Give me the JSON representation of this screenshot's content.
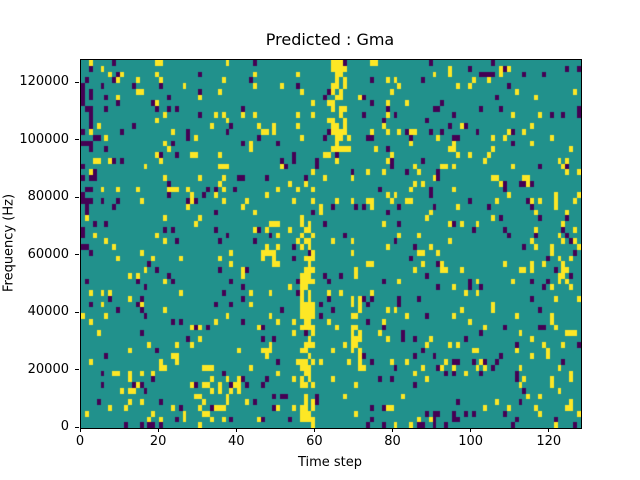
{
  "figure": {
    "background": "#ffffff",
    "axes_edge_color": "#000000",
    "text_color": "#000000"
  },
  "chart_data": {
    "type": "heatmap",
    "title": "Predicted : Gma",
    "xlabel": "Time step",
    "ylabel": "Frequency (Hz)",
    "xlim": [
      0,
      128
    ],
    "ylim": [
      0,
      128000
    ],
    "x_ticks": [
      0,
      20,
      40,
      60,
      80,
      100,
      120
    ],
    "x_tick_labels": [
      "0",
      "20",
      "40",
      "60",
      "80",
      "100",
      "120"
    ],
    "y_ticks": [
      0,
      20000,
      40000,
      60000,
      80000,
      100000,
      120000
    ],
    "y_tick_labels": [
      "0",
      "20000",
      "40000",
      "60000",
      "80000",
      "100000",
      "120000"
    ],
    "grid": {
      "cols": 128,
      "rows": 64,
      "hz_per_row": 2000
    },
    "colormap": "viridis",
    "value_levels": [
      "low",
      "mid",
      "high"
    ],
    "value_colors": {
      "low": "#440154",
      "mid": "#21918c",
      "high": "#fde725"
    },
    "background_value": "mid",
    "legend": "none",
    "grid_lines": false,
    "noise": {
      "seed": 1337,
      "p_high": 0.05,
      "p_low": 0.04
    },
    "clusters": [
      {
        "t0": 56,
        "t1": 59,
        "hz0": 0,
        "hz1": 72000,
        "value": "high",
        "density": 0.55
      },
      {
        "t0": 64,
        "t1": 67,
        "hz0": 96000,
        "hz1": 126000,
        "value": "high",
        "density": 0.5
      },
      {
        "t0": 69,
        "t1": 71,
        "hz0": 20000,
        "hz1": 44000,
        "value": "high",
        "density": 0.45
      },
      {
        "t0": 30,
        "t1": 37,
        "hz0": 0,
        "hz1": 16000,
        "value": "high",
        "density": 0.3
      },
      {
        "t0": 47,
        "t1": 50,
        "hz0": 56000,
        "hz1": 70000,
        "value": "high",
        "density": 0.35
      },
      {
        "t0": 86,
        "t1": 96,
        "hz0": 0,
        "hz1": 4000,
        "value": "low",
        "density": 0.4
      },
      {
        "t0": 0,
        "t1": 3,
        "hz0": 60000,
        "hz1": 124000,
        "value": "low",
        "density": 0.2
      },
      {
        "t0": 120,
        "t1": 127,
        "hz0": 30000,
        "hz1": 90000,
        "value": "high",
        "density": 0.12
      }
    ]
  }
}
